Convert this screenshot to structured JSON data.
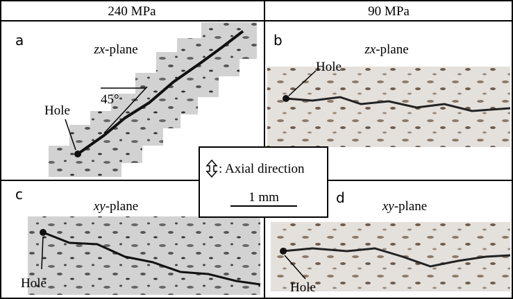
{
  "headers": [
    "240 MPa",
    "90 MPa"
  ],
  "panels": [
    {
      "letter": "a",
      "plane": {
        "axes": "zx",
        "suffix": "-plane"
      },
      "hole": "Hole",
      "angle": "45°"
    },
    {
      "letter": "b",
      "plane": {
        "axes": "zx",
        "suffix": "-plane"
      },
      "hole": "Hole"
    },
    {
      "letter": "c",
      "plane": {
        "axes": "xy",
        "suffix": "-plane"
      },
      "hole": "Hole"
    },
    {
      "letter": "d",
      "plane": {
        "axes": "xy",
        "suffix": "-plane"
      },
      "hole": "Hole"
    }
  ],
  "legend": {
    "axial": ": Axial direction",
    "scale": "1 mm"
  }
}
